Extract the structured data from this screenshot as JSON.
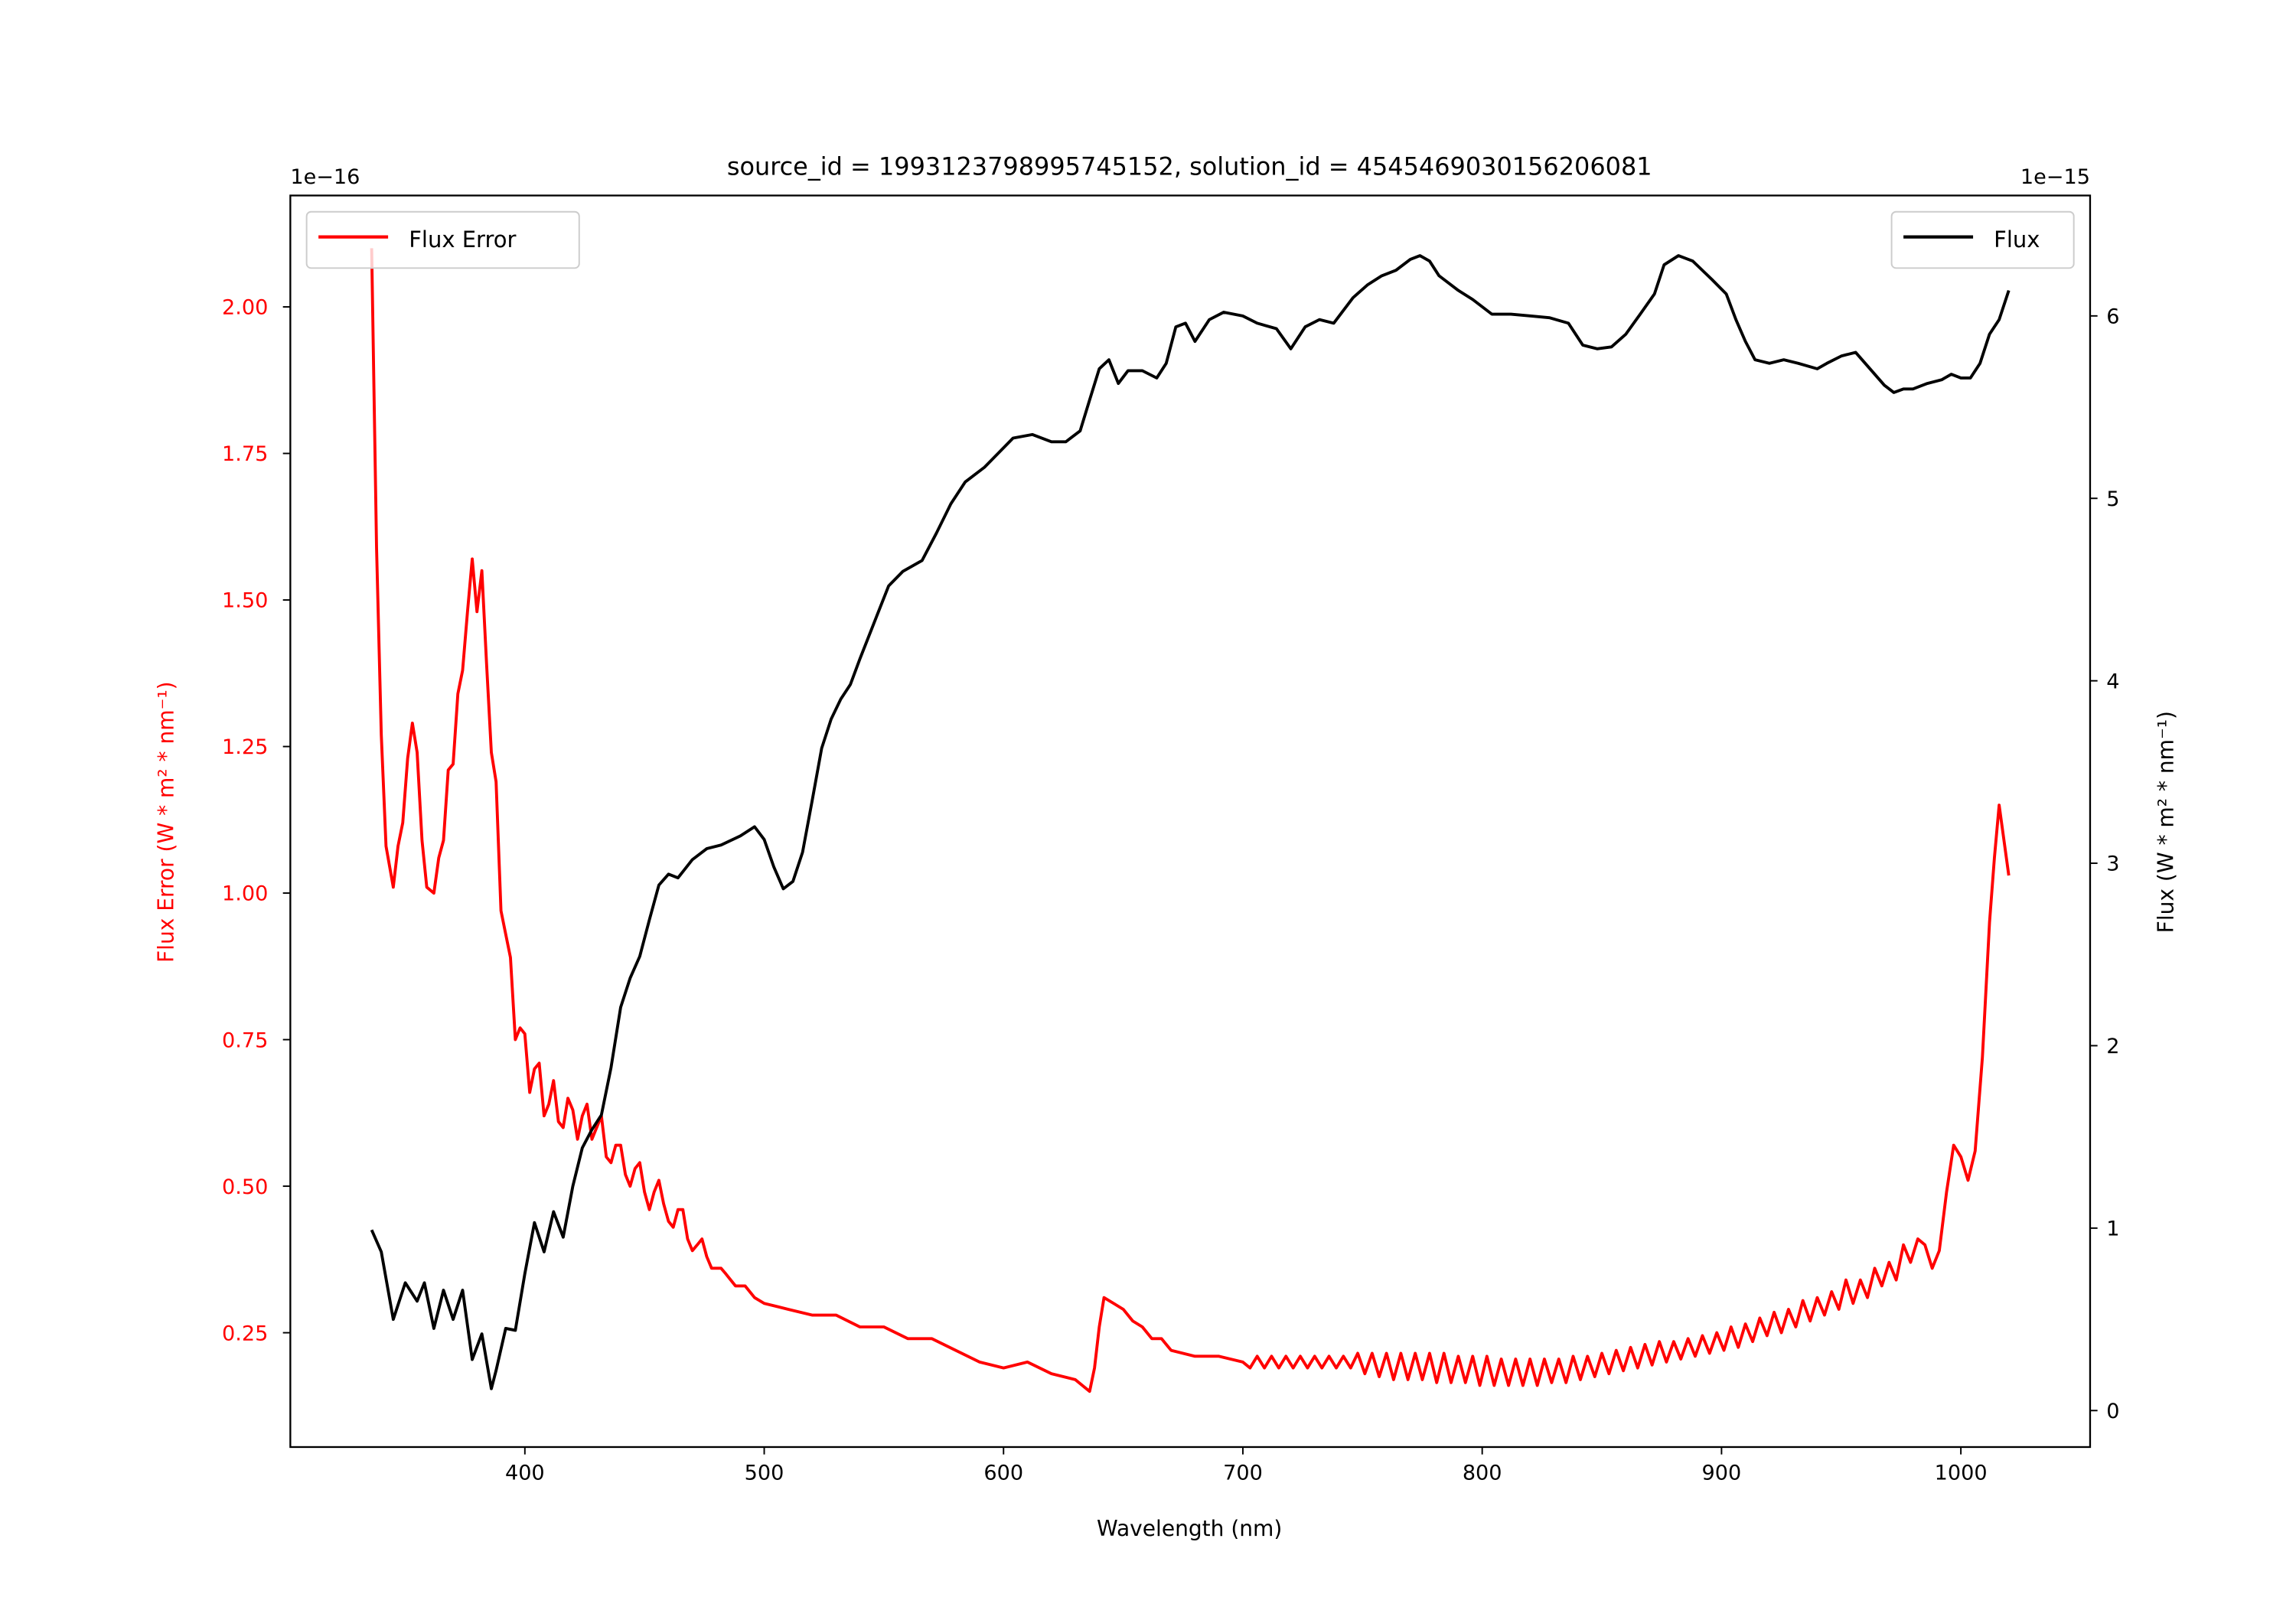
{
  "chart_data": {
    "type": "line",
    "title": "source_id = 1993123798995745152, solution_id = 4545469030156206081",
    "xlabel": "Wavelength (nm)",
    "ylabel_left": "Flux Error (W * m² * nm⁻¹)",
    "ylabel_right": "Flux (W * m² * nm⁻¹)",
    "offset_left": "1e−16",
    "offset_right": "1e−15",
    "xlim": [
      302,
      1054
    ],
    "ylim_left": [
      0.055,
      2.19
    ],
    "ylim_right": [
      -0.2,
      6.66
    ],
    "grid": false,
    "x_ticks": [
      400,
      500,
      600,
      700,
      800,
      900,
      1000
    ],
    "x_tick_labels": [
      "400",
      "500",
      "600",
      "700",
      "800",
      "900",
      "1000"
    ],
    "y_left_ticks": [
      0.25,
      0.5,
      0.75,
      1.0,
      1.25,
      1.5,
      1.75,
      2.0
    ],
    "y_left_tick_labels": [
      "0.25",
      "0.50",
      "0.75",
      "1.00",
      "1.25",
      "1.50",
      "1.75",
      "2.00"
    ],
    "y_right_ticks": [
      0,
      1,
      2,
      3,
      4,
      5,
      6
    ],
    "y_right_tick_labels": [
      "0",
      "1",
      "2",
      "3",
      "4",
      "5",
      "6"
    ],
    "legends": [
      {
        "label": "Flux Error",
        "color": "#ff0000",
        "placement": "upper-left"
      },
      {
        "label": "Flux",
        "color": "#000000",
        "placement": "upper-right"
      }
    ],
    "series": [
      {
        "name": "Flux Error",
        "axis": "left",
        "color": "#ff0000",
        "scale": "1e-16",
        "x": [
          336,
          338,
          340,
          342,
          345,
          347,
          349,
          351,
          353,
          355,
          357,
          359,
          362,
          364,
          366,
          368,
          370,
          372,
          374,
          376,
          378,
          380,
          382,
          384,
          386,
          388,
          390,
          392,
          394,
          396,
          398,
          400,
          402,
          404,
          406,
          408,
          410,
          412,
          414,
          416,
          418,
          420,
          422,
          424,
          426,
          428,
          430,
          432,
          434,
          436,
          438,
          440,
          442,
          444,
          446,
          448,
          450,
          452,
          454,
          456,
          458,
          460,
          462,
          464,
          466,
          468,
          470,
          472,
          474,
          476,
          478,
          480,
          482,
          484,
          488,
          492,
          496,
          500,
          510,
          520,
          530,
          540,
          550,
          560,
          570,
          580,
          590,
          600,
          610,
          620,
          630,
          636,
          638,
          640,
          642,
          646,
          650,
          654,
          658,
          662,
          666,
          670,
          680,
          690,
          700,
          703,
          706,
          709,
          712,
          715,
          718,
          721,
          724,
          727,
          730,
          733,
          736,
          739,
          742,
          745,
          748,
          751,
          754,
          757,
          760,
          763,
          766,
          769,
          772,
          775,
          778,
          781,
          784,
          787,
          790,
          793,
          796,
          799,
          802,
          805,
          808,
          811,
          814,
          817,
          820,
          823,
          826,
          829,
          832,
          835,
          838,
          841,
          844,
          847,
          850,
          853,
          856,
          859,
          862,
          865,
          868,
          871,
          874,
          877,
          880,
          883,
          886,
          889,
          892,
          895,
          898,
          901,
          904,
          907,
          910,
          913,
          916,
          919,
          922,
          925,
          928,
          931,
          934,
          937,
          940,
          943,
          946,
          949,
          952,
          955,
          958,
          961,
          964,
          967,
          970,
          973,
          976,
          979,
          982,
          985,
          988,
          991,
          994,
          997,
          1000,
          1003,
          1006,
          1009,
          1012,
          1014,
          1016,
          1020
        ],
        "y": [
          2.1,
          1.59,
          1.27,
          1.08,
          1.01,
          1.08,
          1.12,
          1.23,
          1.29,
          1.24,
          1.09,
          1.01,
          1.0,
          1.06,
          1.09,
          1.21,
          1.22,
          1.34,
          1.38,
          1.48,
          1.57,
          1.48,
          1.55,
          1.39,
          1.24,
          1.19,
          0.97,
          0.93,
          0.89,
          0.75,
          0.77,
          0.76,
          0.66,
          0.7,
          0.71,
          0.62,
          0.64,
          0.68,
          0.61,
          0.6,
          0.65,
          0.63,
          0.58,
          0.62,
          0.64,
          0.58,
          0.6,
          0.62,
          0.55,
          0.54,
          0.57,
          0.57,
          0.52,
          0.5,
          0.53,
          0.54,
          0.49,
          0.46,
          0.49,
          0.51,
          0.47,
          0.44,
          0.43,
          0.46,
          0.46,
          0.41,
          0.39,
          0.4,
          0.41,
          0.38,
          0.36,
          0.36,
          0.36,
          0.35,
          0.33,
          0.33,
          0.31,
          0.3,
          0.29,
          0.28,
          0.28,
          0.26,
          0.26,
          0.24,
          0.24,
          0.22,
          0.2,
          0.19,
          0.2,
          0.18,
          0.17,
          0.15,
          0.19,
          0.26,
          0.31,
          0.3,
          0.29,
          0.27,
          0.26,
          0.24,
          0.24,
          0.22,
          0.21,
          0.21,
          0.2,
          0.19,
          0.21,
          0.19,
          0.21,
          0.19,
          0.21,
          0.19,
          0.21,
          0.19,
          0.21,
          0.19,
          0.21,
          0.19,
          0.21,
          0.19,
          0.215,
          0.18,
          0.215,
          0.175,
          0.215,
          0.17,
          0.215,
          0.17,
          0.215,
          0.17,
          0.215,
          0.165,
          0.215,
          0.165,
          0.21,
          0.165,
          0.21,
          0.16,
          0.21,
          0.16,
          0.205,
          0.16,
          0.205,
          0.16,
          0.205,
          0.16,
          0.205,
          0.165,
          0.205,
          0.165,
          0.21,
          0.17,
          0.21,
          0.175,
          0.215,
          0.18,
          0.22,
          0.185,
          0.225,
          0.19,
          0.23,
          0.195,
          0.235,
          0.2,
          0.235,
          0.205,
          0.24,
          0.21,
          0.245,
          0.215,
          0.25,
          0.22,
          0.26,
          0.225,
          0.265,
          0.235,
          0.275,
          0.245,
          0.285,
          0.25,
          0.29,
          0.26,
          0.305,
          0.27,
          0.31,
          0.28,
          0.32,
          0.29,
          0.34,
          0.3,
          0.34,
          0.31,
          0.36,
          0.33,
          0.37,
          0.34,
          0.4,
          0.37,
          0.41,
          0.4,
          0.36,
          0.39,
          0.49,
          0.57,
          0.55,
          0.51,
          0.56,
          0.72,
          0.95,
          1.06,
          1.15,
          1.03
        ]
      },
      {
        "name": "Flux",
        "axis": "right",
        "color": "#000000",
        "scale": "1e-15",
        "x": [
          336,
          340,
          345,
          350,
          355,
          358,
          362,
          366,
          370,
          374,
          378,
          382,
          386,
          388,
          392,
          396,
          400,
          404,
          408,
          412,
          416,
          420,
          424,
          428,
          432,
          436,
          440,
          444,
          448,
          452,
          456,
          460,
          464,
          470,
          476,
          482,
          490,
          496,
          500,
          504,
          508,
          512,
          516,
          520,
          524,
          528,
          532,
          536,
          540,
          546,
          552,
          558,
          566,
          572,
          578,
          584,
          592,
          598,
          604,
          612,
          620,
          626,
          632,
          636,
          640,
          644,
          648,
          652,
          658,
          664,
          668,
          672,
          676,
          680,
          686,
          692,
          700,
          706,
          714,
          720,
          726,
          732,
          738,
          746,
          752,
          758,
          764,
          770,
          774,
          778,
          782,
          790,
          796,
          804,
          812,
          820,
          828,
          836,
          842,
          848,
          854,
          860,
          866,
          872,
          876,
          882,
          888,
          896,
          902,
          906,
          910,
          914,
          920,
          926,
          932,
          940,
          944,
          950,
          956,
          962,
          968,
          972,
          976,
          980,
          986,
          992,
          996,
          1000,
          1004,
          1008,
          1012,
          1016,
          1020
        ],
        "y": [
          0.99,
          0.87,
          0.5,
          0.7,
          0.6,
          0.7,
          0.45,
          0.66,
          0.5,
          0.66,
          0.28,
          0.42,
          0.12,
          0.22,
          0.45,
          0.44,
          0.75,
          1.03,
          0.87,
          1.09,
          0.95,
          1.23,
          1.44,
          1.54,
          1.62,
          1.88,
          2.21,
          2.37,
          2.49,
          2.69,
          2.88,
          2.94,
          2.92,
          3.02,
          3.08,
          3.1,
          3.15,
          3.2,
          3.13,
          2.98,
          2.86,
          2.9,
          3.06,
          3.34,
          3.63,
          3.79,
          3.9,
          3.98,
          4.12,
          4.32,
          4.52,
          4.6,
          4.66,
          4.81,
          4.97,
          5.09,
          5.17,
          5.25,
          5.33,
          5.35,
          5.31,
          5.31,
          5.37,
          5.54,
          5.71,
          5.76,
          5.63,
          5.7,
          5.7,
          5.66,
          5.74,
          5.94,
          5.96,
          5.86,
          5.98,
          6.02,
          6.0,
          5.96,
          5.93,
          5.82,
          5.94,
          5.98,
          5.96,
          6.1,
          6.17,
          6.22,
          6.25,
          6.31,
          6.33,
          6.3,
          6.22,
          6.14,
          6.09,
          6.01,
          6.01,
          6.0,
          5.99,
          5.96,
          5.84,
          5.82,
          5.83,
          5.9,
          6.01,
          6.12,
          6.28,
          6.33,
          6.3,
          6.2,
          6.12,
          5.98,
          5.86,
          5.76,
          5.74,
          5.76,
          5.74,
          5.71,
          5.74,
          5.78,
          5.8,
          5.71,
          5.62,
          5.58,
          5.6,
          5.6,
          5.63,
          5.65,
          5.68,
          5.66,
          5.66,
          5.74,
          5.9,
          5.98,
          6.14
        ]
      }
    ]
  }
}
